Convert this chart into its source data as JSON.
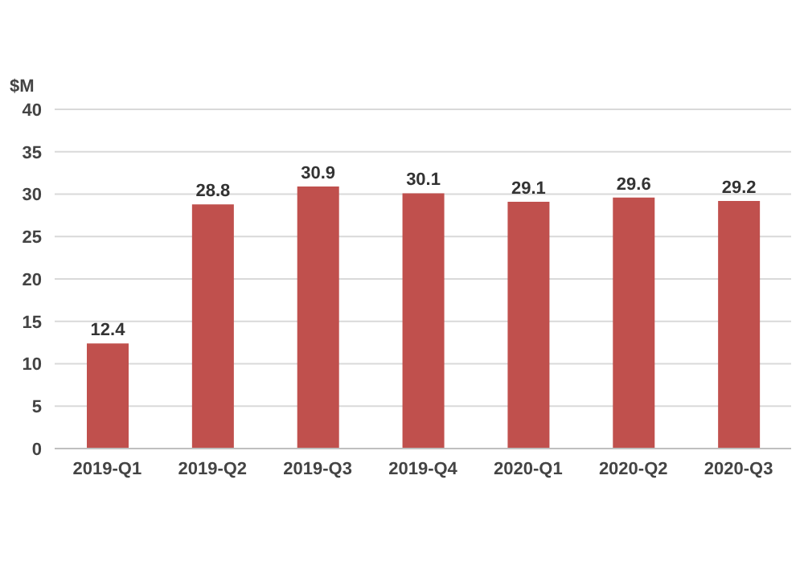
{
  "chart_data": {
    "type": "bar",
    "ylabel": "$M",
    "categories": [
      "2019-Q1",
      "2019-Q2",
      "2019-Q3",
      "2019-Q4",
      "2020-Q1",
      "2020-Q2",
      "2020-Q3"
    ],
    "values": [
      12.4,
      28.8,
      30.9,
      30.1,
      29.1,
      29.6,
      29.2
    ],
    "color": "#c0504d",
    "ylim": [
      0,
      40
    ],
    "yticks": [
      0,
      5,
      10,
      15,
      20,
      25,
      30,
      35,
      40
    ],
    "grid": "y",
    "data_labels": true,
    "legend": false
  }
}
